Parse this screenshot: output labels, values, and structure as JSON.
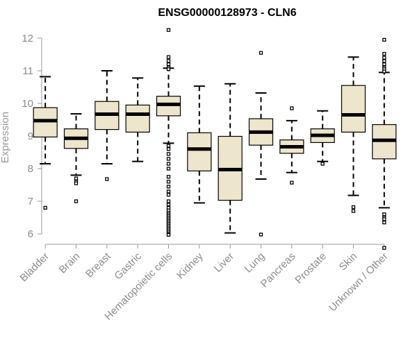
{
  "chart_data": {
    "type": "boxplot",
    "title": "ENSG00000128973 - CLN6",
    "ylabel": "Expression",
    "xlabel": "",
    "ylim": [
      5.6,
      12.3
    ],
    "yticks": [
      6,
      7,
      8,
      9,
      10,
      11,
      12
    ],
    "categories": [
      "Bladder",
      "Brain",
      "Breast",
      "Gastric",
      "Hematopoietic cells",
      "Kidney",
      "Liver",
      "Lung",
      "Pancreas",
      "Prostate",
      "Skin",
      "Unknown / Other"
    ],
    "box_fill": "#ede5cc",
    "stroke": "#000000",
    "boxes": [
      {
        "whisker_low": 8.15,
        "q1": 8.97,
        "median": 9.47,
        "q3": 9.87,
        "whisker_high": 10.82,
        "outliers": [
          6.8
        ]
      },
      {
        "whisker_low": 7.8,
        "q1": 8.62,
        "median": 8.93,
        "q3": 9.22,
        "whisker_high": 9.68,
        "outliers": [
          7.7,
          7.6,
          7.55,
          7.0
        ]
      },
      {
        "whisker_low": 8.15,
        "q1": 9.2,
        "median": 9.67,
        "q3": 10.06,
        "whisker_high": 11.0,
        "outliers": [
          7.68
        ]
      },
      {
        "whisker_low": 8.22,
        "q1": 9.12,
        "median": 9.67,
        "q3": 9.95,
        "whisker_high": 10.78,
        "outliers": []
      },
      {
        "whisker_low": 8.78,
        "q1": 9.62,
        "median": 9.97,
        "q3": 10.22,
        "whisker_high": 11.08,
        "outliers": [
          12.25,
          11.42,
          11.3,
          11.2,
          11.1,
          11.05,
          8.7,
          8.6,
          8.45,
          8.3,
          8.15,
          8.0,
          7.75,
          7.6,
          7.45,
          7.3,
          7.2,
          7.0,
          6.9,
          6.8,
          6.72,
          6.65,
          6.6,
          6.55,
          6.5,
          6.45,
          6.4,
          6.35,
          6.3,
          6.25,
          6.2,
          6.15,
          6.1,
          6.05,
          6.0,
          5.97
        ]
      },
      {
        "whisker_low": 6.95,
        "q1": 7.93,
        "median": 8.6,
        "q3": 9.1,
        "whisker_high": 10.53,
        "outliers": []
      },
      {
        "whisker_low": 6.03,
        "q1": 7.03,
        "median": 7.97,
        "q3": 8.99,
        "whisker_high": 10.6,
        "outliers": []
      },
      {
        "whisker_low": 7.68,
        "q1": 8.72,
        "median": 9.12,
        "q3": 9.53,
        "whisker_high": 10.32,
        "outliers": [
          11.55,
          5.98
        ]
      },
      {
        "whisker_low": 7.88,
        "q1": 8.47,
        "median": 8.67,
        "q3": 8.88,
        "whisker_high": 9.47,
        "outliers": [
          9.85,
          7.57
        ]
      },
      {
        "whisker_low": 8.22,
        "q1": 8.8,
        "median": 9.02,
        "q3": 9.22,
        "whisker_high": 9.77,
        "outliers": [
          8.15
        ]
      },
      {
        "whisker_low": 7.18,
        "q1": 9.12,
        "median": 9.65,
        "q3": 10.55,
        "whisker_high": 11.42,
        "outliers": [
          6.82,
          6.7
        ]
      },
      {
        "whisker_low": 6.8,
        "q1": 8.3,
        "median": 8.87,
        "q3": 9.35,
        "whisker_high": 10.95,
        "outliers": [
          11.95,
          11.52,
          11.4,
          11.3,
          11.2,
          11.1,
          11.05,
          10.98,
          6.6,
          6.5,
          6.45,
          6.35,
          5.57
        ]
      }
    ]
  }
}
